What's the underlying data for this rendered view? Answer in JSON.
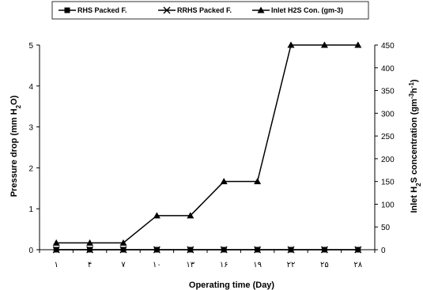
{
  "chart_data": {
    "type": "line",
    "x": [
      "١",
      "۴",
      "٧",
      "١٠",
      "١٣",
      "١۶",
      "١٩",
      "٢٢",
      "٢۵",
      "٢٨"
    ],
    "xlabel": "Operating time (Day)",
    "ylabel_left": {
      "main": "Pressure drop (mm H",
      "sub": "2",
      "tail": "O)"
    },
    "ylabel_right": {
      "pre": "Inlet H",
      "sub": "2",
      "mid": "S concentration (gm",
      "sup1": "-3",
      "mid2": "h",
      "sup2": "-1",
      "tail": ")"
    },
    "ylim_left": [
      0,
      5
    ],
    "ylim_right": [
      0,
      450
    ],
    "yticks_left": [
      "0",
      "1",
      "2",
      "3",
      "4",
      "5"
    ],
    "yticks_right": [
      "0",
      "50",
      "100",
      "150",
      "200",
      "250",
      "300",
      "350",
      "400",
      "450"
    ],
    "legend_position": "top",
    "series": [
      {
        "name": "RHS Packed F.",
        "axis": "left",
        "marker": "square",
        "color": "#000000",
        "values": [
          0.0,
          0.0,
          0.0,
          0.0,
          0.0,
          0.0,
          0.0,
          0.0,
          0.0,
          0.0
        ]
      },
      {
        "name": "RRHS Packed F.",
        "axis": "left",
        "marker": "x",
        "color": "#000000",
        "values": [
          0.0,
          0.0,
          0.0,
          0.0,
          0.0,
          0.0,
          0.0,
          0.0,
          0.0,
          0.0
        ]
      },
      {
        "name": "Inlet  H2S Con. (gm-3)",
        "axis": "right",
        "marker": "triangle",
        "color": "#000000",
        "values": [
          15,
          15,
          15,
          75,
          75,
          150,
          150,
          450,
          450,
          450
        ]
      }
    ]
  }
}
